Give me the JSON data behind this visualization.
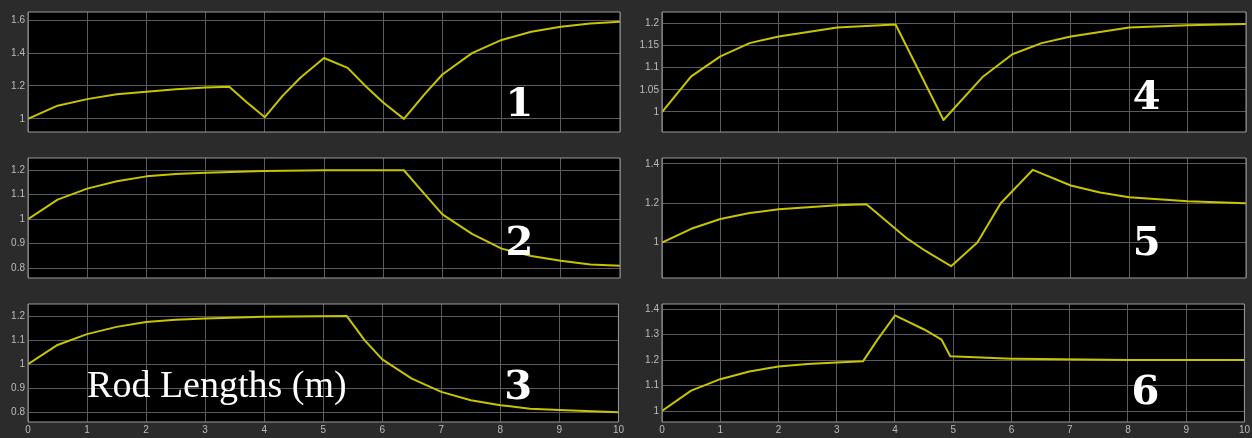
{
  "chart_data": [
    {
      "type": "line",
      "x": [
        0,
        0.5,
        1,
        1.5,
        2,
        2.5,
        3,
        3.4,
        3.7,
        4,
        4.3,
        4.6,
        5,
        5.4,
        5.7,
        6,
        6.35,
        6.7,
        7,
        7.5,
        8,
        8.5,
        9,
        9.5,
        10
      ],
      "series": [
        {
          "color": "#c8c400",
          "values": [
            1,
            1.08,
            1.12,
            1.15,
            1.165,
            1.18,
            1.19,
            1.195,
            1.1,
            1.01,
            1.14,
            1.25,
            1.37,
            1.31,
            1.2,
            1.1,
            1.0,
            1.15,
            1.27,
            1.4,
            1.48,
            1.53,
            1.56,
            1.58,
            1.59
          ]
        }
      ],
      "xlim": [
        0,
        10
      ],
      "xticks": [
        0,
        1,
        2,
        3,
        4,
        5,
        6,
        7,
        8,
        9,
        10
      ],
      "ylim": [
        0.92,
        1.65
      ],
      "yticks": [
        1,
        1.2,
        1.4,
        1.6
      ],
      "grid": true,
      "marker": "none",
      "tick_labels": "y",
      "annotations": [
        "1"
      ]
    },
    {
      "type": "line",
      "x": [
        0,
        0.5,
        1,
        1.5,
        2,
        2.5,
        3,
        4,
        5,
        6.35,
        6.6,
        7,
        7.5,
        8,
        8.5,
        9,
        9.5,
        10
      ],
      "series": [
        {
          "color": "#c8c400",
          "values": [
            1,
            1.08,
            1.125,
            1.155,
            1.175,
            1.185,
            1.19,
            1.197,
            1.2,
            1.2,
            1.13,
            1.02,
            0.94,
            0.88,
            0.85,
            0.83,
            0.815,
            0.81
          ]
        }
      ],
      "xlim": [
        0,
        10
      ],
      "xticks": [
        0,
        1,
        2,
        3,
        4,
        5,
        6,
        7,
        8,
        9,
        10
      ],
      "ylim": [
        0.76,
        1.25
      ],
      "yticks": [
        0.8,
        0.9,
        1,
        1.1,
        1.2
      ],
      "grid": true,
      "marker": "none",
      "tick_labels": "y",
      "annotations": [
        "2"
      ]
    },
    {
      "type": "line",
      "x": [
        0,
        0.5,
        1,
        1.5,
        2,
        2.5,
        3,
        4,
        5.4,
        5.7,
        6,
        6.5,
        7,
        7.5,
        8,
        8.5,
        9,
        10
      ],
      "series": [
        {
          "color": "#c8c400",
          "values": [
            1,
            1.08,
            1.125,
            1.155,
            1.175,
            1.185,
            1.19,
            1.197,
            1.2,
            1.1,
            1.02,
            0.94,
            0.885,
            0.85,
            0.83,
            0.815,
            0.81,
            0.8
          ]
        }
      ],
      "xlim": [
        0,
        10
      ],
      "xticks": [
        0,
        1,
        2,
        3,
        4,
        5,
        6,
        7,
        8,
        9,
        10
      ],
      "ylim": [
        0.76,
        1.25
      ],
      "yticks": [
        0.8,
        0.9,
        1,
        1.1,
        1.2
      ],
      "grid": true,
      "marker": "none",
      "annotations": [
        "3",
        "Rod Lengths (m)"
      ]
    },
    {
      "type": "line",
      "x": [
        0,
        0.5,
        1,
        1.5,
        2,
        2.5,
        3,
        4,
        4.82,
        5.5,
        6,
        6.5,
        7,
        7.5,
        8,
        9,
        10
      ],
      "series": [
        {
          "color": "#c8c400",
          "values": [
            1,
            1.08,
            1.125,
            1.155,
            1.17,
            1.18,
            1.19,
            1.197,
            0.982,
            1.08,
            1.13,
            1.155,
            1.17,
            1.18,
            1.19,
            1.195,
            1.198
          ]
        }
      ],
      "xlim": [
        0,
        10
      ],
      "xticks": [
        0,
        1,
        2,
        3,
        4,
        5,
        6,
        7,
        8,
        9,
        10
      ],
      "ylim": [
        0.955,
        1.225
      ],
      "yticks": [
        1,
        1.05,
        1.1,
        1.15,
        1.2
      ],
      "grid": true,
      "marker": "none",
      "tick_labels": "y",
      "annotations": [
        "4"
      ]
    },
    {
      "type": "line",
      "x": [
        0,
        0.5,
        1,
        1.5,
        2,
        2.5,
        3,
        3.5,
        3.8,
        4.2,
        4.5,
        4.95,
        5.4,
        5.8,
        6.35,
        7,
        7.5,
        8,
        9,
        10
      ],
      "series": [
        {
          "color": "#c8c400",
          "values": [
            1,
            1.07,
            1.12,
            1.15,
            1.17,
            1.18,
            1.19,
            1.195,
            1.12,
            1.02,
            0.96,
            0.88,
            1.0,
            1.2,
            1.37,
            1.29,
            1.255,
            1.23,
            1.21,
            1.2
          ]
        }
      ],
      "xlim": [
        0,
        10
      ],
      "xticks": [
        0,
        1,
        2,
        3,
        4,
        5,
        6,
        7,
        8,
        9,
        10
      ],
      "ylim": [
        0.82,
        1.43
      ],
      "yticks": [
        1,
        1.2,
        1.4
      ],
      "grid": true,
      "marker": "none",
      "tick_labels": "y",
      "annotations": [
        "5"
      ]
    },
    {
      "type": "line",
      "x": [
        0,
        0.5,
        1,
        1.5,
        2,
        2.5,
        3,
        3.45,
        3.7,
        4,
        4.5,
        4.8,
        4.95,
        6,
        8,
        10
      ],
      "series": [
        {
          "color": "#c8c400",
          "values": [
            1,
            1.08,
            1.125,
            1.155,
            1.175,
            1.185,
            1.19,
            1.195,
            1.28,
            1.375,
            1.32,
            1.28,
            1.215,
            1.205,
            1.2,
            1.2
          ]
        }
      ],
      "xlim": [
        0,
        10
      ],
      "xticks": [
        0,
        1,
        2,
        3,
        4,
        5,
        6,
        7,
        8,
        9,
        10
      ],
      "ylim": [
        0.957,
        1.42
      ],
      "yticks": [
        1,
        1.1,
        1.2,
        1.3,
        1.4
      ],
      "grid": true,
      "marker": "none",
      "annotations": [
        "6"
      ]
    }
  ]
}
